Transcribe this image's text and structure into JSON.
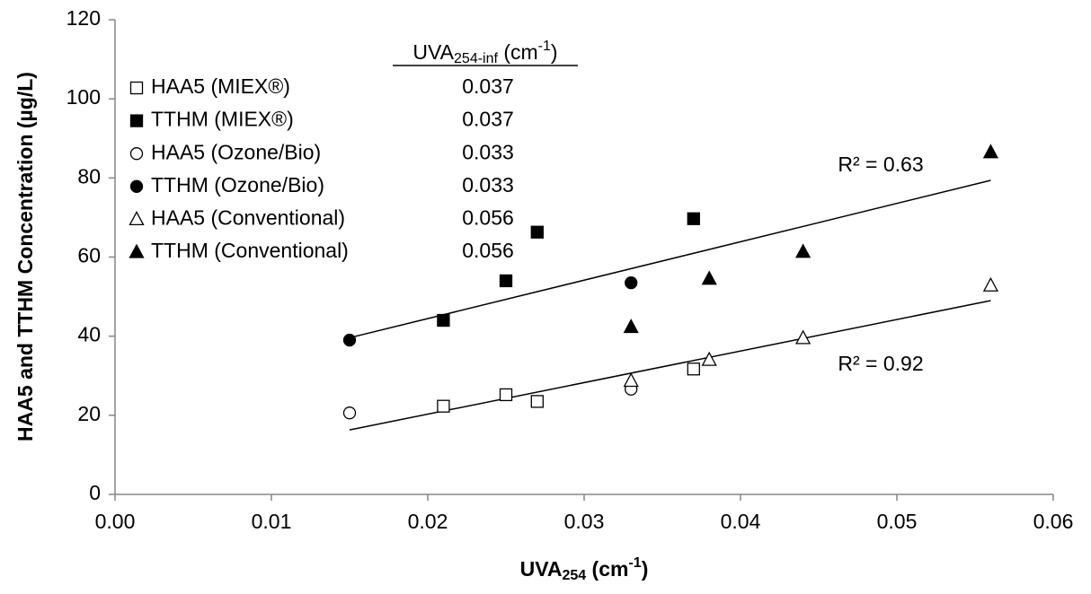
{
  "chart_data": {
    "type": "scatter",
    "xlabel": {
      "base": "UVA",
      "sub": "254",
      "unit": " (cm",
      "sup": "-1",
      "close": ")"
    },
    "ylabel": "HAA5 and TTHM Concentration (µg/L)",
    "legend_header": {
      "base": "UVA",
      "sub": "254-inf",
      "unit": " (cm",
      "sup": "-1",
      "close": ")"
    },
    "xlim": [
      0,
      0.06
    ],
    "ylim": [
      0,
      120
    ],
    "xticks": [
      {
        "value": 0,
        "label": "0.00"
      },
      {
        "value": 0.01,
        "label": "0.01"
      },
      {
        "value": 0.02,
        "label": "0.02"
      },
      {
        "value": 0.03,
        "label": "0.03"
      },
      {
        "value": 0.04,
        "label": "0.04"
      },
      {
        "value": 0.05,
        "label": "0.05"
      },
      {
        "value": 0.06,
        "label": "0.06"
      }
    ],
    "yticks": [
      0,
      20,
      40,
      60,
      80,
      100,
      120
    ],
    "legend": "top-left",
    "series": [
      {
        "name": "HAA5 (MIEX®)",
        "uva_inf": 0.037,
        "marker": "square",
        "filled": false,
        "color": "#000000",
        "x": [
          0.021,
          0.025,
          0.027,
          0.037
        ],
        "values": [
          22.3,
          25.2,
          23.5,
          31.7
        ]
      },
      {
        "name": "TTHM (MIEX®)",
        "uva_inf": 0.037,
        "marker": "square",
        "filled": true,
        "color": "#000000",
        "x": [
          0.021,
          0.025,
          0.027,
          0.037
        ],
        "values": [
          44,
          54,
          66.3,
          69.7
        ]
      },
      {
        "name": "HAA5 (Ozone/Bio)",
        "uva_inf": 0.033,
        "marker": "circle",
        "filled": false,
        "color": "#000000",
        "x": [
          0.015,
          0.033
        ],
        "values": [
          20.6,
          26.6
        ]
      },
      {
        "name": "TTHM (Ozone/Bio)",
        "uva_inf": 0.033,
        "marker": "circle",
        "filled": true,
        "color": "#000000",
        "x": [
          0.015,
          0.033
        ],
        "values": [
          39,
          53.5
        ]
      },
      {
        "name": "HAA5 (Conventional)",
        "uva_inf": 0.056,
        "marker": "triangle",
        "filled": false,
        "color": "#000000",
        "x": [
          0.033,
          0.038,
          0.044,
          0.056
        ],
        "values": [
          28.7,
          34,
          39.5,
          52.8
        ]
      },
      {
        "name": "TTHM (Conventional)",
        "uva_inf": 0.056,
        "marker": "triangle",
        "filled": true,
        "color": "#000000",
        "x": [
          0.033,
          0.038,
          0.044,
          0.056
        ],
        "values": [
          42.3,
          54.5,
          61.3,
          86.5
        ]
      }
    ],
    "trendlines": [
      {
        "label": "R² = 0.63",
        "x": [
          0.015,
          0.056
        ],
        "values": [
          39.6,
          79.4
        ]
      },
      {
        "label": "R² = 0.92",
        "x": [
          0.015,
          0.056
        ],
        "values": [
          16.3,
          49
        ]
      }
    ]
  }
}
